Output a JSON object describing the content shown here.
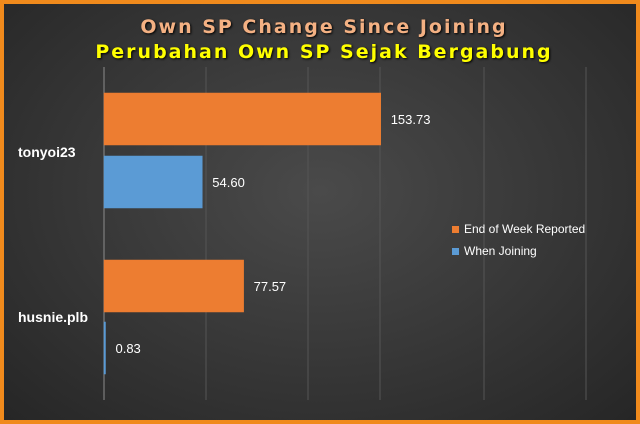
{
  "title": "Own SP Change Since Joining",
  "subtitle": "Perubahan Own SP Sejak Bergabung",
  "colors": {
    "end_of_week": "#ed7d31",
    "when_joining": "#5b9bd5"
  },
  "chart_data": {
    "type": "bar",
    "orientation": "horizontal",
    "categories": [
      "tonyoi23",
      "husnie.plb"
    ],
    "series": [
      {
        "name": "End of Week Reported",
        "values": [
          153.73,
          77.57
        ],
        "color": "#ed7d31"
      },
      {
        "name": "When Joining",
        "values": [
          54.6,
          0.83
        ],
        "color": "#5b9bd5"
      }
    ],
    "value_labels": [
      [
        "153.73",
        "54.60"
      ],
      [
        "77.57",
        "0.83"
      ]
    ],
    "xlim": [
      0,
      200
    ],
    "grid": true,
    "legend_position": "right"
  }
}
